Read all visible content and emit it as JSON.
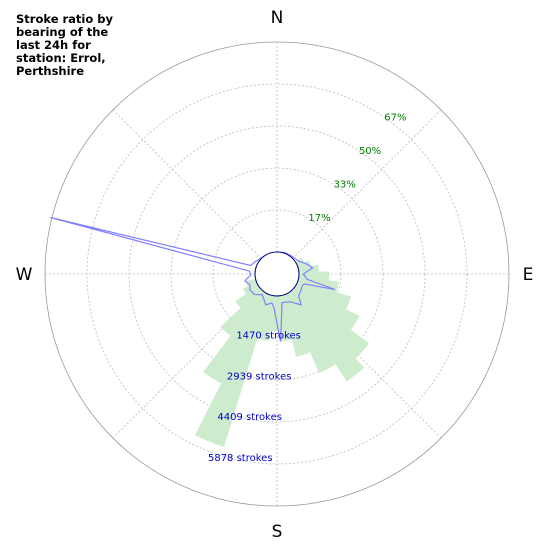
{
  "title": "Stroke ratio by\nbearing of the\nlast 24h for\nstation: Errol,\nPerthshire",
  "chart_data": {
    "type": "polar",
    "directions": [
      "N",
      "E",
      "S",
      "W"
    ],
    "ratio_labels": [
      "17%",
      "33%",
      "50%",
      "67%"
    ],
    "count_labels": [
      "1470 strokes",
      "2939 strokes",
      "4409 strokes",
      "5878 strokes"
    ],
    "ratio_max_pct": 83.3,
    "count_max": 7348,
    "colors": {
      "ratio_fill": "#cdeccd",
      "count_line": "#8080ff",
      "grid": "#bbbbbb",
      "ratio_text": "#008000",
      "count_text": "#0000cc"
    },
    "ratio_bars": [
      {
        "bearing": 62,
        "pct": 3
      },
      {
        "bearing": 72,
        "pct": 5
      },
      {
        "bearing": 82,
        "pct": 8
      },
      {
        "bearing": 92,
        "pct": 12
      },
      {
        "bearing": 102,
        "pct": 16
      },
      {
        "bearing": 112,
        "pct": 22
      },
      {
        "bearing": 122,
        "pct": 28
      },
      {
        "bearing": 132,
        "pct": 37
      },
      {
        "bearing": 142,
        "pct": 42
      },
      {
        "bearing": 152,
        "pct": 34
      },
      {
        "bearing": 162,
        "pct": 25
      },
      {
        "bearing": 172,
        "pct": 18
      },
      {
        "bearing": 182,
        "pct": 14
      },
      {
        "bearing": 192,
        "pct": 18
      },
      {
        "bearing": 202,
        "pct": 63
      },
      {
        "bearing": 212,
        "pct": 40
      },
      {
        "bearing": 222,
        "pct": 22
      },
      {
        "bearing": 232,
        "pct": 11
      },
      {
        "bearing": 242,
        "pct": 6
      },
      {
        "bearing": 252,
        "pct": 4
      }
    ],
    "stroke_counts": [
      {
        "bearing": 0,
        "count": 0
      },
      {
        "bearing": 20,
        "count": 30
      },
      {
        "bearing": 40,
        "count": 40
      },
      {
        "bearing": 60,
        "count": 120
      },
      {
        "bearing": 70,
        "count": 300
      },
      {
        "bearing": 80,
        "count": 500
      },
      {
        "bearing": 90,
        "count": 150
      },
      {
        "bearing": 100,
        "count": 300
      },
      {
        "bearing": 105,
        "count": 1330
      },
      {
        "bearing": 110,
        "count": 250
      },
      {
        "bearing": 115,
        "count": 200
      },
      {
        "bearing": 125,
        "count": 250
      },
      {
        "bearing": 135,
        "count": 300
      },
      {
        "bearing": 142,
        "count": 600
      },
      {
        "bearing": 155,
        "count": 300
      },
      {
        "bearing": 170,
        "count": 250
      },
      {
        "bearing": 177,
        "count": 1600
      },
      {
        "bearing": 185,
        "count": 420
      },
      {
        "bearing": 190,
        "count": 260
      },
      {
        "bearing": 200,
        "count": 380
      },
      {
        "bearing": 215,
        "count": 120
      },
      {
        "bearing": 228,
        "count": 300
      },
      {
        "bearing": 240,
        "count": 330
      },
      {
        "bearing": 248,
        "count": 250
      },
      {
        "bearing": 258,
        "count": 380
      },
      {
        "bearing": 268,
        "count": 140
      },
      {
        "bearing": 276,
        "count": 200
      },
      {
        "bearing": 284,
        "count": 7400
      },
      {
        "bearing": 288,
        "count": 200
      },
      {
        "bearing": 300,
        "count": 100
      },
      {
        "bearing": 330,
        "count": 0
      },
      {
        "bearing": 360,
        "count": 0
      }
    ]
  }
}
